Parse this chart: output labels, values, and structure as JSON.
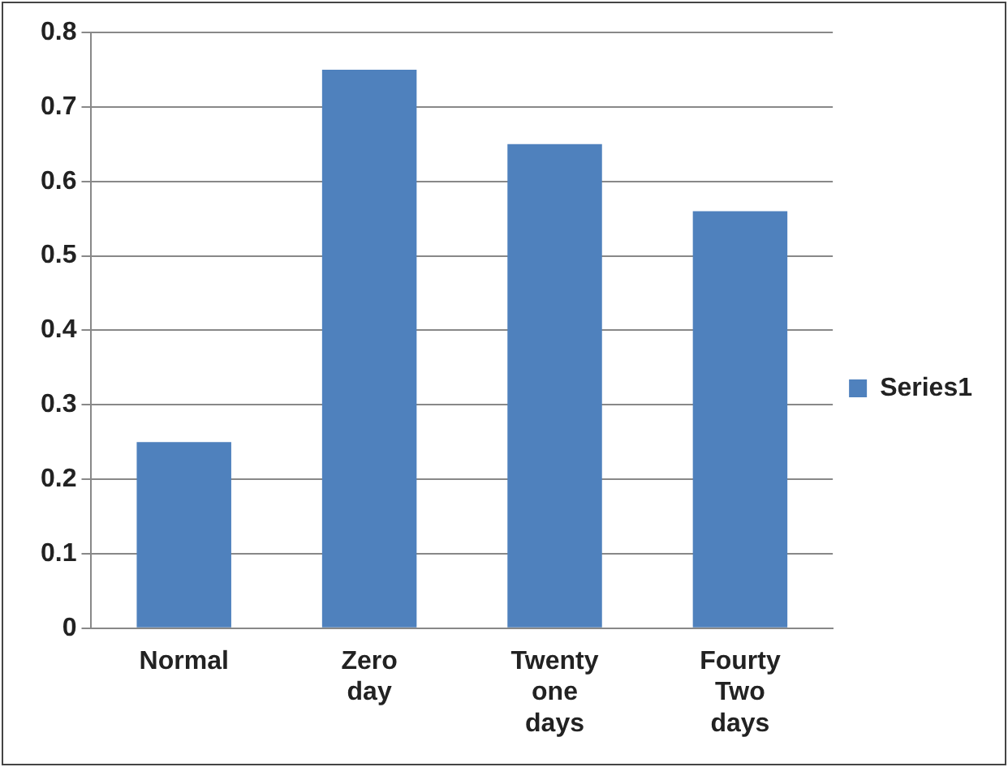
{
  "chart_data": {
    "type": "bar",
    "categories": [
      "Normal",
      "Zero day",
      "Twenty one days",
      "Fourty Two days"
    ],
    "series": [
      {
        "name": "Series1",
        "color": "#4f81bd",
        "values": [
          0.25,
          0.75,
          0.65,
          0.56
        ]
      }
    ],
    "ylim": [
      0,
      0.8
    ],
    "yticks": [
      0,
      0.1,
      0.2,
      0.3,
      0.4,
      0.5,
      0.6,
      0.7,
      0.8
    ],
    "grid": "y",
    "legend": "right"
  }
}
